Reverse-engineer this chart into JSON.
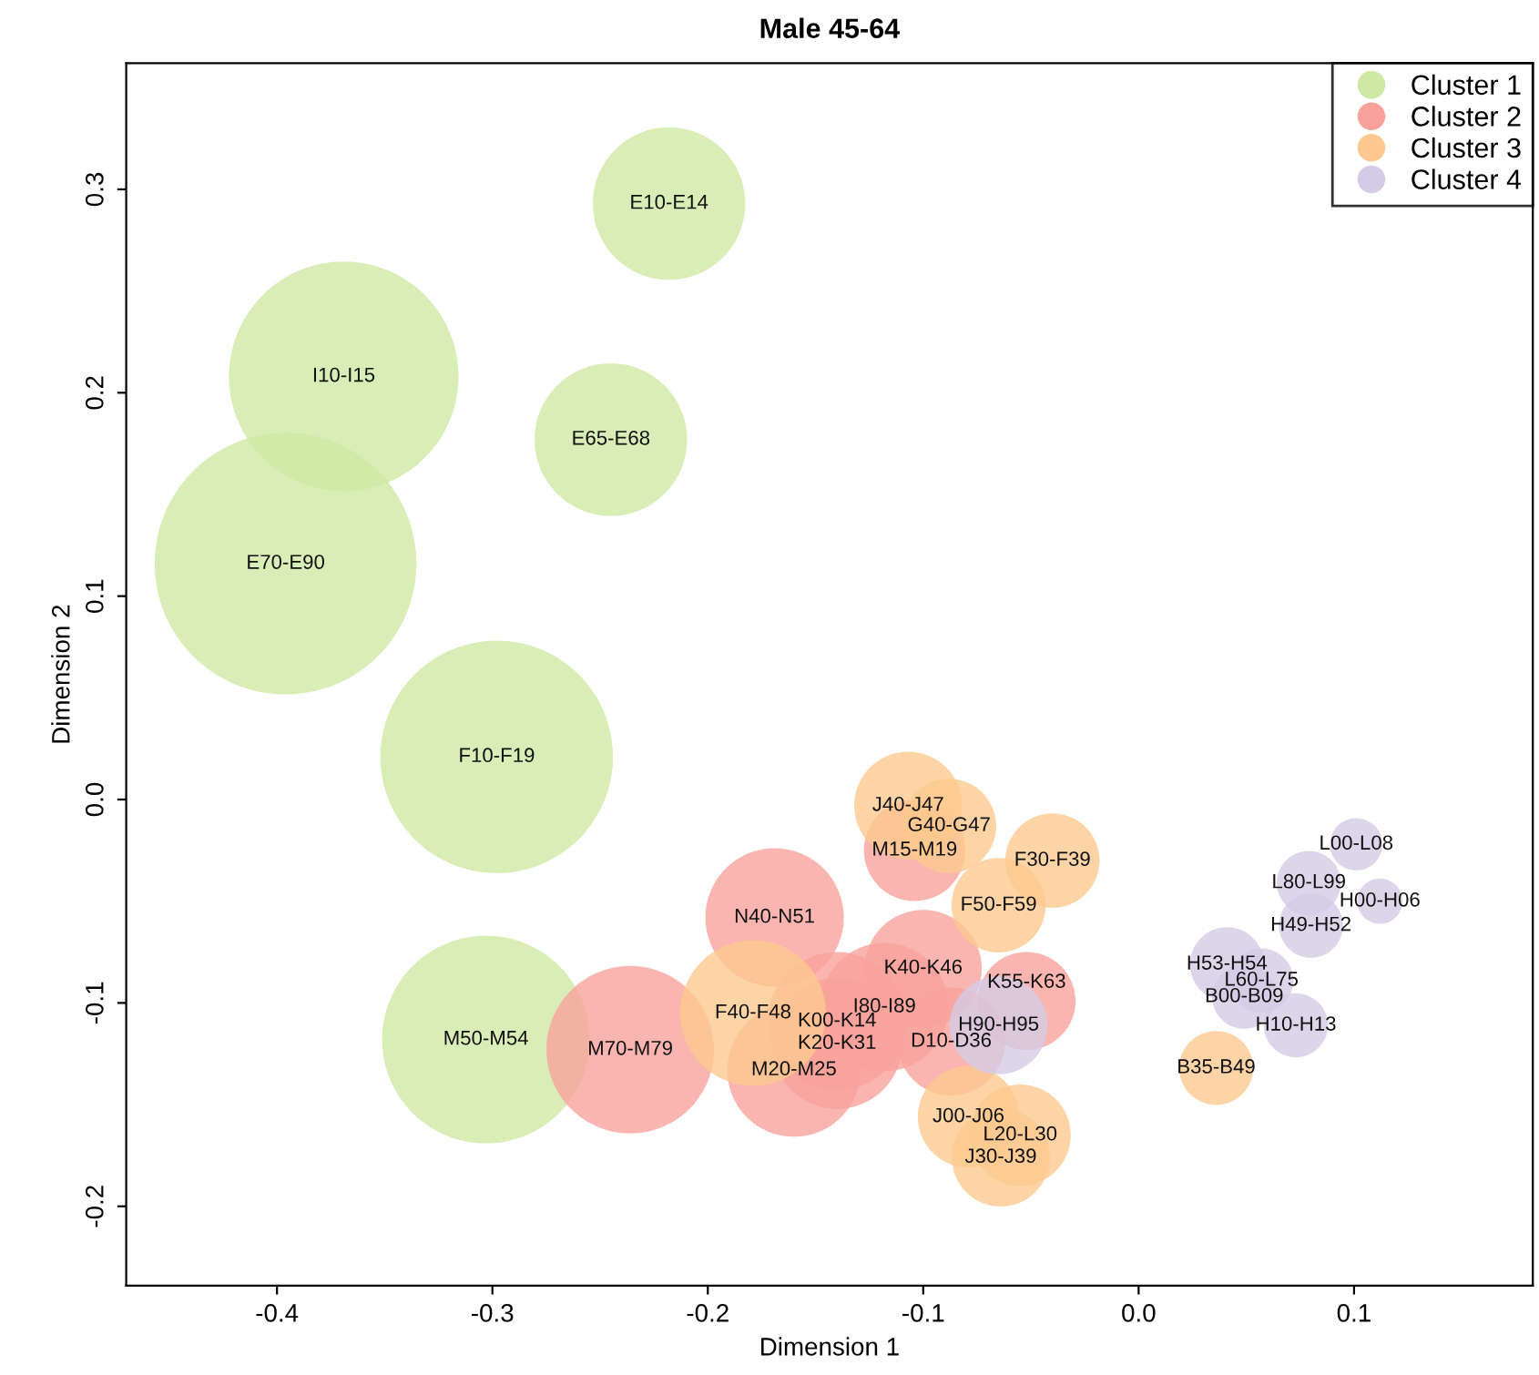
{
  "chart_data": {
    "type": "bubble",
    "title": "Male 45-64",
    "xlabel": "Dimension 1",
    "ylabel": "Dimension 2",
    "xlim": [
      -0.47,
      0.183
    ],
    "ylim": [
      -0.239,
      0.362
    ],
    "xticks": [
      {
        "value": -0.4,
        "label": "-0.4"
      },
      {
        "value": -0.3,
        "label": "-0.3"
      },
      {
        "value": -0.2,
        "label": "-0.2"
      },
      {
        "value": -0.1,
        "label": "-0.1"
      },
      {
        "value": 0,
        "label": "0.0"
      },
      {
        "value": 0.1,
        "label": "0.1"
      }
    ],
    "yticks": [
      {
        "value": -0.2,
        "label": "-0.2"
      },
      {
        "value": -0.1,
        "label": "-0.1"
      },
      {
        "value": 0,
        "label": "0.0"
      },
      {
        "value": 0.1,
        "label": "0.1"
      },
      {
        "value": 0.2,
        "label": "0.2"
      },
      {
        "value": 0.3,
        "label": "0.3"
      }
    ],
    "grid": false,
    "legend": "top right",
    "marker": "circle",
    "series": [
      {
        "name": "Cluster 1",
        "color": "#cfe8a4",
        "x": [
          -0.218,
          -0.369,
          -0.245,
          -0.396,
          -0.298,
          -0.303
        ],
        "values": [
          0.293,
          0.208,
          0.177,
          0.116,
          0.021,
          -0.118
        ],
        "sizes": [
          0.34,
          0.77,
          0.34,
          1,
          0.79,
          0.63
        ]
      },
      {
        "name": "Cluster 2",
        "color": "#f9a29c",
        "x": [
          -0.236,
          -0.169,
          -0.14,
          -0.14,
          -0.16,
          -0.118,
          -0.1,
          -0.087,
          -0.052,
          -0.104
        ],
        "values": [
          -0.123,
          -0.058,
          -0.109,
          -0.12,
          -0.133,
          -0.102,
          -0.083,
          -0.119,
          -0.099,
          -0.025
        ],
        "sizes": [
          0.41,
          0.28,
          0.28,
          0.25,
          0.26,
          0.24,
          0.2,
          0.17,
          0.14,
          0.15
        ]
      },
      {
        "name": "Cluster 3",
        "color": "#fdc990",
        "x": [
          -0.179,
          -0.107,
          -0.088,
          -0.04,
          -0.065,
          -0.079,
          -0.055,
          -0.064,
          0.036
        ],
        "values": [
          -0.105,
          -0.003,
          -0.013,
          -0.03,
          -0.052,
          -0.156,
          -0.165,
          -0.176,
          -0.132
        ],
        "sizes": [
          0.31,
          0.17,
          0.13,
          0.13,
          0.13,
          0.15,
          0.15,
          0.14,
          0.08
        ]
      },
      {
        "name": "Cluster 4",
        "color": "#d4cce6",
        "x": [
          -0.065,
          0.101,
          0.079,
          0.112,
          0.08,
          0.041,
          0.057,
          0.049,
          0.073
        ],
        "values": [
          -0.111,
          -0.022,
          -0.041,
          -0.05,
          -0.062,
          -0.081,
          -0.089,
          -0.097,
          -0.111
        ],
        "sizes": [
          0.14,
          0.04,
          0.06,
          0.03,
          0.06,
          0.08,
          0.06,
          0.06,
          0.06
        ]
      }
    ],
    "annotations": [
      {
        "text": "E10-E14",
        "x": -0.218,
        "y": 0.293
      },
      {
        "text": "I10-I15",
        "x": -0.369,
        "y": 0.208
      },
      {
        "text": "E65-E68",
        "x": -0.245,
        "y": 0.177
      },
      {
        "text": "E70-E90",
        "x": -0.396,
        "y": 0.116
      },
      {
        "text": "F10-F19",
        "x": -0.298,
        "y": 0.021
      },
      {
        "text": "M50-M54",
        "x": -0.303,
        "y": -0.118
      },
      {
        "text": "M70-M79",
        "x": -0.236,
        "y": -0.123
      },
      {
        "text": "N40-N51",
        "x": -0.169,
        "y": -0.058
      },
      {
        "text": "K00-K14",
        "x": -0.14,
        "y": -0.109
      },
      {
        "text": "K20-K31",
        "x": -0.14,
        "y": -0.12
      },
      {
        "text": "M20-M25",
        "x": -0.16,
        "y": -0.133
      },
      {
        "text": "I80-I89",
        "x": -0.118,
        "y": -0.102
      },
      {
        "text": "K40-K46",
        "x": -0.1,
        "y": -0.083
      },
      {
        "text": "D10-D36",
        "x": -0.087,
        "y": -0.119
      },
      {
        "text": "K55-K63",
        "x": -0.052,
        "y": -0.09
      },
      {
        "text": "M15-M19",
        "x": -0.104,
        "y": -0.025
      },
      {
        "text": "F40-F48",
        "x": -0.179,
        "y": -0.105
      },
      {
        "text": "J40-J47",
        "x": -0.107,
        "y": -0.003
      },
      {
        "text": "G40-G47",
        "x": -0.088,
        "y": -0.013
      },
      {
        "text": "F30-F39",
        "x": -0.04,
        "y": -0.03
      },
      {
        "text": "F50-F59",
        "x": -0.065,
        "y": -0.052
      },
      {
        "text": "J00-J06",
        "x": -0.079,
        "y": -0.156
      },
      {
        "text": "L20-L30",
        "x": -0.055,
        "y": -0.165
      },
      {
        "text": "J30-J39",
        "x": -0.064,
        "y": -0.176
      },
      {
        "text": "B35-B49",
        "x": 0.036,
        "y": -0.132
      },
      {
        "text": "H90-H95",
        "x": -0.065,
        "y": -0.111
      },
      {
        "text": "L00-L08",
        "x": 0.101,
        "y": -0.022
      },
      {
        "text": "L80-L99",
        "x": 0.079,
        "y": -0.041
      },
      {
        "text": "H00-H06",
        "x": 0.112,
        "y": -0.05
      },
      {
        "text": "H49-H52",
        "x": 0.08,
        "y": -0.062
      },
      {
        "text": "H53-H54",
        "x": 0.041,
        "y": -0.081
      },
      {
        "text": "L60-L75",
        "x": 0.057,
        "y": -0.089
      },
      {
        "text": "B00-B09",
        "x": 0.049,
        "y": -0.097
      },
      {
        "text": "H10-H13",
        "x": 0.073,
        "y": -0.111
      }
    ]
  }
}
